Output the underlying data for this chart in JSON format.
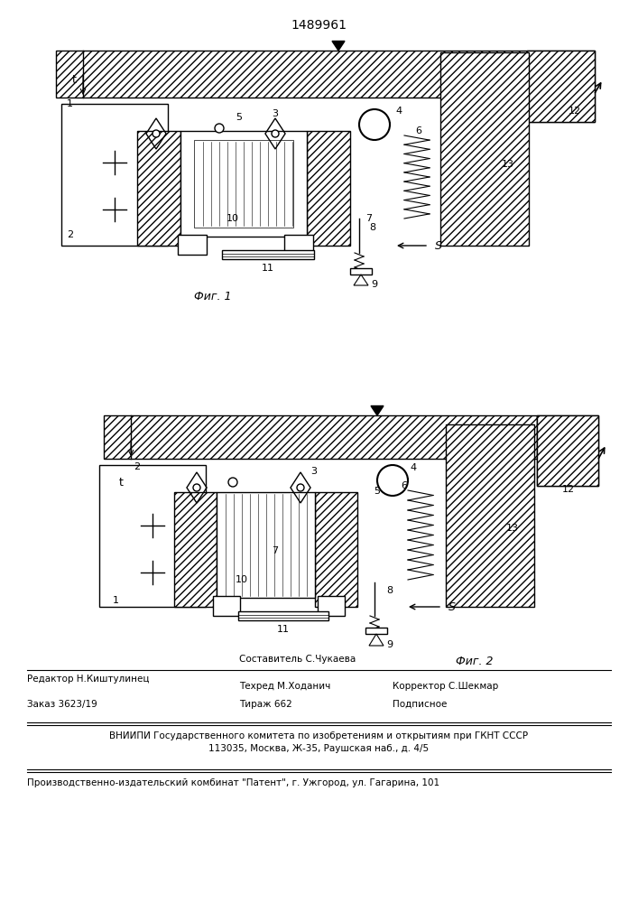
{
  "patent_number": "1489961",
  "bg_color": "#ffffff",
  "line_color": "#000000",
  "hatch_color": "#000000",
  "fig1_label": "Фиг. 1",
  "fig2_label": "Фиг. 2",
  "footer_line1_left": "Редактор Н.Киштулинец",
  "footer_line1_center": "Техред М.Ходанич",
  "footer_line1_right": "Корректор С.Шекмар",
  "footer_sostavitel": "Составитель С.Чукаева",
  "footer_zakaz": "Заказ 3623/19",
  "footer_tirazh": "Тираж 662",
  "footer_podpisnoe": "Подписное",
  "footer_vniipи": "ВНИИПИ Государственного комитета по изобретениям и открытиям при ГКНТ СССР",
  "footer_address": "113035, Москва, Ж-35, Раушская наб., д. 4/5",
  "footer_patent": "Производственно-издательский комбинат \"Патент\", г. Ужгород, ул. Гагарина, 101"
}
